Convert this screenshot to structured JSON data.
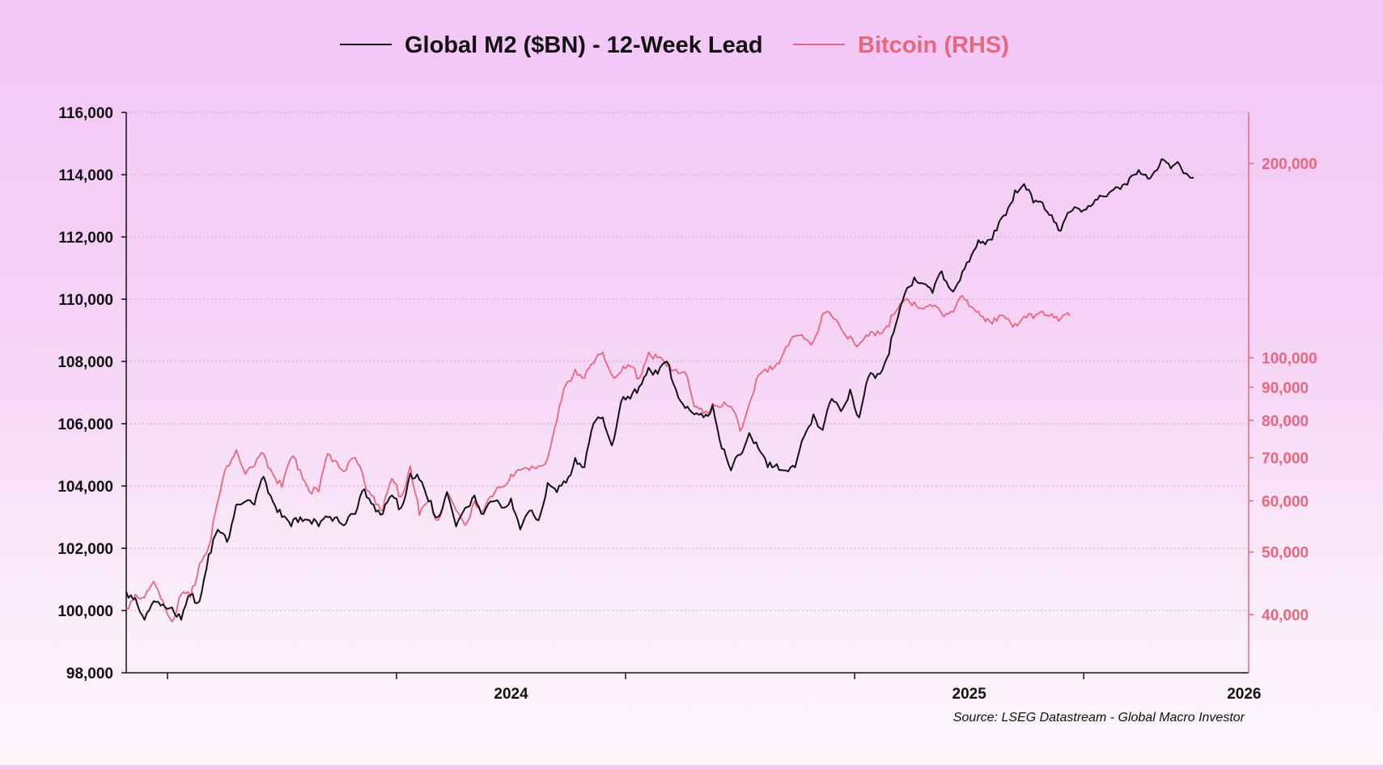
{
  "chart_data": {
    "type": "line",
    "title": "",
    "source": "Source: LSEG Datastream - Global Macro Investor",
    "legend": [
      {
        "label": "Global M2 ($BN) - 12-Week Lead",
        "color": "#111111",
        "key": "m2"
      },
      {
        "label": "Bitcoin (RHS)",
        "color": "#e8677c",
        "key": "btc"
      }
    ],
    "x_axis": {
      "range": [
        2023.66,
        2026.11
      ],
      "tick_labels": [
        "2024",
        "2025",
        "2026"
      ],
      "tick_label_positions": [
        2024.5,
        2025.5,
        2026.1
      ],
      "tick_marks": [
        2023.75,
        2024.25,
        2024.75,
        2025.25,
        2025.75
      ],
      "scale": "linear"
    },
    "left_axis": {
      "label": "",
      "range": [
        98000,
        116000
      ],
      "ticks": [
        98000,
        100000,
        102000,
        104000,
        106000,
        108000,
        110000,
        112000,
        114000,
        116000
      ],
      "tick_labels": [
        "98,000",
        "100,000",
        "102,000",
        "104,000",
        "106,000",
        "108,000",
        "110,000",
        "112,000",
        "114,000",
        "116,000"
      ],
      "grid": true
    },
    "right_axis": {
      "label": "",
      "scale": "log",
      "range": [
        32500,
        240000
      ],
      "ticks": [
        40000,
        50000,
        60000,
        70000,
        80000,
        90000,
        100000,
        200000
      ],
      "tick_labels": [
        "40,000",
        "50,000",
        "60,000",
        "70,000",
        "80,000",
        "90,000",
        "100,000",
        "200,000"
      ]
    },
    "series": [
      {
        "name": "Global M2 ($BN) - 12-Week Lead",
        "axis": "left",
        "color": "#111111",
        "x": [
          2023.66,
          2023.68,
          2023.7,
          2023.72,
          2023.74,
          2023.76,
          2023.78,
          2023.8,
          2023.82,
          2023.84,
          2023.86,
          2023.88,
          2023.9,
          2023.92,
          2023.94,
          2023.96,
          2023.98,
          2024.0,
          2024.02,
          2024.04,
          2024.06,
          2024.08,
          2024.1,
          2024.12,
          2024.14,
          2024.16,
          2024.18,
          2024.2,
          2024.22,
          2024.24,
          2024.26,
          2024.28,
          2024.3,
          2024.32,
          2024.34,
          2024.36,
          2024.38,
          2024.4,
          2024.42,
          2024.44,
          2024.46,
          2024.48,
          2024.5,
          2024.52,
          2024.54,
          2024.56,
          2024.58,
          2024.6,
          2024.62,
          2024.64,
          2024.66,
          2024.68,
          2024.7,
          2024.72,
          2024.74,
          2024.76,
          2024.78,
          2024.8,
          2024.82,
          2024.84,
          2024.86,
          2024.88,
          2024.9,
          2024.92,
          2024.94,
          2024.96,
          2024.98,
          2025.0,
          2025.02,
          2025.04,
          2025.06,
          2025.08,
          2025.1,
          2025.12,
          2025.14,
          2025.16,
          2025.18,
          2025.2,
          2025.22,
          2025.24,
          2025.26,
          2025.28,
          2025.3,
          2025.32,
          2025.34,
          2025.36,
          2025.38,
          2025.4,
          2025.42,
          2025.44,
          2025.46,
          2025.48,
          2025.5,
          2025.52,
          2025.54,
          2025.56,
          2025.58,
          2025.6,
          2025.62,
          2025.64,
          2025.66,
          2025.68,
          2025.7,
          2025.72,
          2025.74,
          2025.76,
          2025.78,
          2025.8,
          2025.82,
          2025.84,
          2025.86,
          2025.88,
          2025.9,
          2025.92,
          2025.94,
          2025.96,
          2025.99
        ],
        "values": [
          100600,
          100400,
          99700,
          100300,
          100200,
          100100,
          99700,
          100500,
          100300,
          101800,
          102600,
          102200,
          103400,
          103500,
          103400,
          104300,
          103500,
          103000,
          102700,
          103000,
          102900,
          102700,
          103000,
          103000,
          102800,
          103100,
          103900,
          103400,
          103100,
          103700,
          103300,
          104400,
          104200,
          103500,
          103000,
          103800,
          102700,
          103300,
          103700,
          103100,
          103500,
          103300,
          103600,
          102600,
          103200,
          102900,
          104100,
          103800,
          104100,
          104900,
          104600,
          106000,
          106200,
          105300,
          106700,
          106800,
          107200,
          107800,
          107600,
          108000,
          107100,
          106500,
          106300,
          106200,
          106600,
          105200,
          104500,
          105000,
          105700,
          105200,
          104600,
          104700,
          104500,
          104600,
          105600,
          106300,
          105800,
          106800,
          106400,
          107100,
          106200,
          107500,
          107600,
          108100,
          109200,
          110200,
          110700,
          110500,
          110200,
          110900,
          110300,
          110600,
          111200,
          111900,
          111900,
          112200,
          112700,
          113500,
          113700,
          113100,
          113100,
          112700,
          112200,
          112800,
          112900,
          113000,
          113200,
          113300,
          113600,
          113700,
          114000,
          114000,
          114000,
          114500,
          114200,
          114300,
          113900
        ]
      },
      {
        "name": "Bitcoin (RHS)",
        "axis": "right",
        "color": "#e8677c",
        "x": [
          2023.66,
          2023.68,
          2023.7,
          2023.72,
          2023.74,
          2023.76,
          2023.78,
          2023.8,
          2023.82,
          2023.84,
          2023.86,
          2023.88,
          2023.9,
          2023.92,
          2023.94,
          2023.96,
          2023.98,
          2024.0,
          2024.02,
          2024.04,
          2024.06,
          2024.08,
          2024.1,
          2024.12,
          2024.14,
          2024.16,
          2024.18,
          2024.2,
          2024.22,
          2024.24,
          2024.26,
          2024.28,
          2024.3,
          2024.32,
          2024.34,
          2024.36,
          2024.38,
          2024.4,
          2024.42,
          2024.44,
          2024.46,
          2024.48,
          2024.5,
          2024.52,
          2024.54,
          2024.56,
          2024.58,
          2024.6,
          2024.62,
          2024.64,
          2024.66,
          2024.68,
          2024.7,
          2024.72,
          2024.74,
          2024.76,
          2024.78,
          2024.8,
          2024.82,
          2024.84,
          2024.86,
          2024.88,
          2024.9,
          2024.92,
          2024.94,
          2024.96,
          2024.98,
          2025.0,
          2025.02,
          2025.04,
          2025.06,
          2025.08,
          2025.1,
          2025.12,
          2025.14,
          2025.16,
          2025.18,
          2025.2,
          2025.22,
          2025.24,
          2025.26,
          2025.28,
          2025.3,
          2025.32,
          2025.34,
          2025.36,
          2025.38,
          2025.4,
          2025.42,
          2025.44,
          2025.46,
          2025.48,
          2025.5,
          2025.52,
          2025.54,
          2025.56,
          2025.58,
          2025.6,
          2025.62,
          2025.64,
          2025.66,
          2025.68,
          2025.7,
          2025.72
        ],
        "values": [
          41000,
          43000,
          42500,
          45000,
          42000,
          39000,
          43000,
          42500,
          48000,
          51000,
          60000,
          68000,
          72000,
          66000,
          68000,
          71000,
          66000,
          63000,
          70000,
          67000,
          62000,
          62000,
          71000,
          69000,
          67000,
          70000,
          64000,
          61000,
          58000,
          65000,
          61000,
          68000,
          57000,
          60000,
          56000,
          62000,
          58000,
          55000,
          60000,
          58000,
          61000,
          63000,
          66000,
          67000,
          67000,
          68000,
          70000,
          80000,
          91000,
          96000,
          93000,
          98000,
          102000,
          94000,
          95000,
          97000,
          93000,
          102000,
          100000,
          97000,
          96000,
          95000,
          84000,
          82000,
          85000,
          84000,
          84000,
          77000,
          85000,
          94000,
          95000,
          98000,
          104000,
          108000,
          107000,
          106000,
          117000,
          116000,
          111000,
          108000,
          105000,
          108000,
          110000,
          112000,
          118000,
          123000,
          122000,
          119000,
          120000,
          117000,
          118000,
          124000,
          120000,
          118000,
          115000,
          114000,
          115000,
          113000,
          116000,
          115000,
          118000,
          117000,
          115000,
          116000
        ]
      }
    ]
  }
}
